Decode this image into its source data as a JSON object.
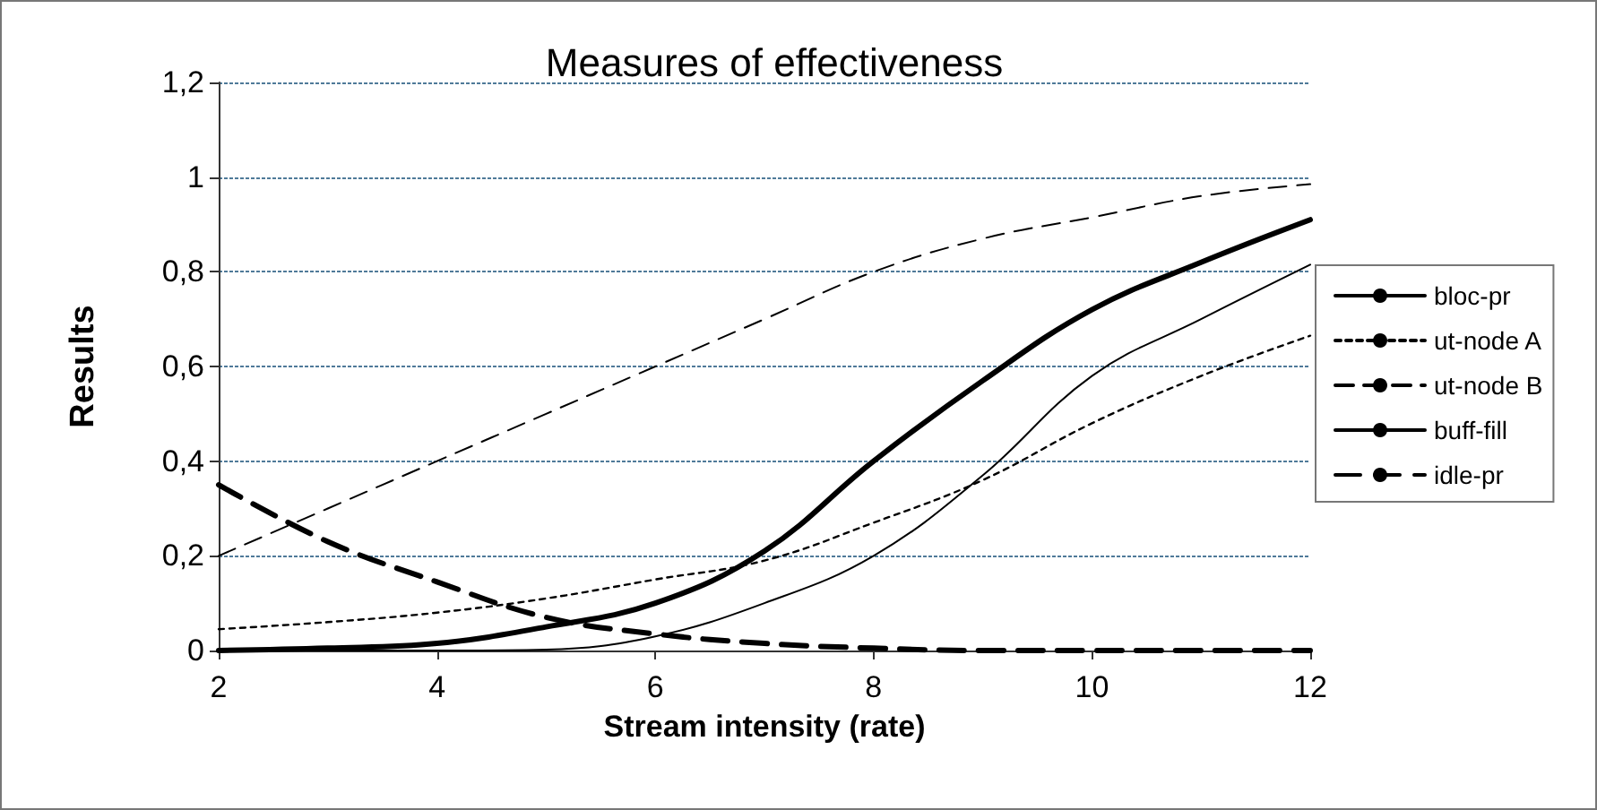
{
  "chart_data": {
    "type": "line",
    "title": "Measures of effectiveness",
    "xlabel": "Stream intensity (rate)",
    "ylabel": "Results",
    "x": [
      2,
      3,
      4,
      5,
      6,
      7,
      8,
      9,
      10,
      11,
      12
    ],
    "series": [
      {
        "name": "bloc-pr",
        "color": "#000000",
        "line_style": "solid",
        "values": [
          0,
          0,
          0,
          0.002,
          0.03,
          0.1,
          0.2,
          0.37,
          0.58,
          0.7,
          0.815
        ]
      },
      {
        "name": "ut-node A",
        "color": "#000000",
        "line_style": "dotted",
        "values": [
          0.045,
          0.06,
          0.08,
          0.11,
          0.15,
          0.19,
          0.27,
          0.36,
          0.48,
          0.58,
          0.665
        ]
      },
      {
        "name": "ut-node B",
        "color": "#000000",
        "line_style": "dashed",
        "values": [
          0.2,
          0.3,
          0.4,
          0.5,
          0.6,
          0.7,
          0.8,
          0.87,
          0.915,
          0.96,
          0.985
        ]
      },
      {
        "name": "buff-fill",
        "color": "#000000",
        "line_style": "solid",
        "values": [
          0,
          0.005,
          0.015,
          0.05,
          0.1,
          0.21,
          0.4,
          0.57,
          0.72,
          0.82,
          0.91
        ]
      },
      {
        "name": "idle-pr",
        "color": "#000000",
        "line_style": "dashed",
        "values": [
          0.35,
          0.23,
          0.145,
          0.07,
          0.035,
          0.015,
          0.005,
          0,
          0,
          0,
          0
        ]
      }
    ],
    "xlim": [
      2,
      12
    ],
    "xticks": [
      2,
      4,
      6,
      8,
      10,
      12
    ],
    "ylim": [
      0,
      1.2
    ],
    "yticks": [
      0,
      {
        "value": 0.2,
        "label": "0,2"
      },
      {
        "value": 0.4,
        "label": "0,4"
      },
      {
        "value": 0.6,
        "label": "0,6"
      },
      {
        "value": 0.8,
        "label": "0,8"
      },
      1,
      {
        "value": 1.2,
        "label": "1,2"
      }
    ],
    "grid": "y",
    "legend": "right",
    "marker": "none"
  }
}
